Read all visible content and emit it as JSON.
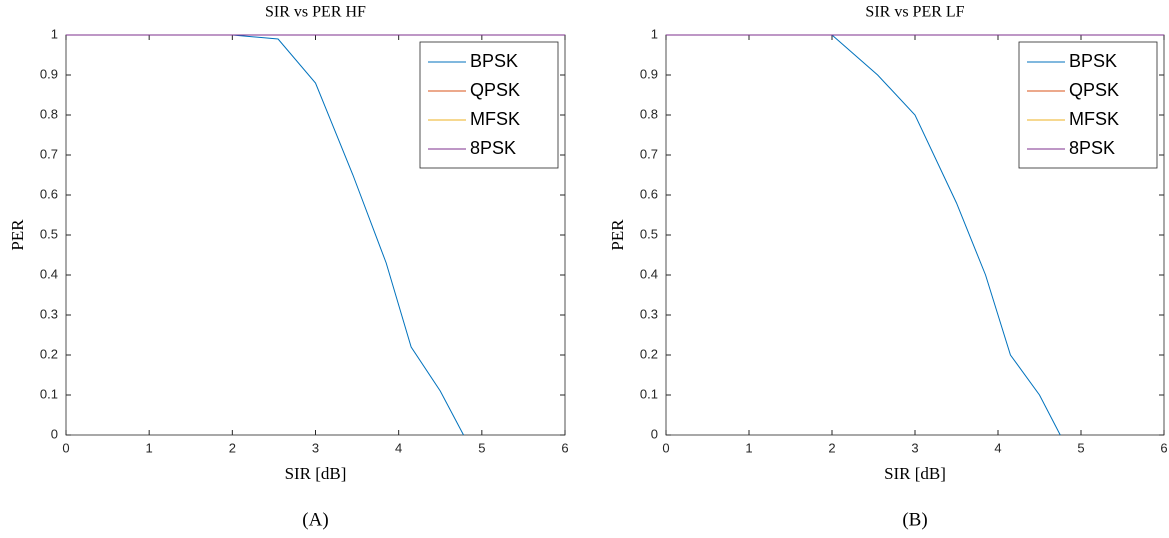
{
  "chart_data": [
    {
      "type": "line",
      "title": "SIR vs PER HF",
      "xlabel": "SIR [dB]",
      "ylabel": "PER",
      "caption": "(A)",
      "xlim": [
        0,
        6
      ],
      "ylim": [
        0,
        1
      ],
      "xticks": [
        0,
        1,
        2,
        3,
        4,
        5,
        6
      ],
      "yticks": [
        0,
        0.1,
        0.2,
        0.3,
        0.4,
        0.5,
        0.6,
        0.7,
        0.8,
        0.9,
        1
      ],
      "legend": "upper right",
      "series": [
        {
          "name": "BPSK",
          "color": "#0072bd",
          "x": [
            0,
            0.5,
            1,
            1.5,
            2,
            2.55,
            3,
            3.45,
            3.85,
            4.15,
            4.5,
            4.78
          ],
          "values": [
            1,
            1,
            1,
            1,
            1,
            0.99,
            0.88,
            0.65,
            0.43,
            0.22,
            0.11,
            0
          ]
        },
        {
          "name": "QPSK",
          "color": "#d95319",
          "x": [
            0,
            6
          ],
          "values": [
            1,
            1
          ]
        },
        {
          "name": "MFSK",
          "color": "#edb120",
          "x": [
            0,
            6
          ],
          "values": [
            1,
            1
          ]
        },
        {
          "name": "8PSK",
          "color": "#7e2f8e",
          "x": [
            0,
            6
          ],
          "values": [
            1,
            1
          ]
        }
      ]
    },
    {
      "type": "line",
      "title": "SIR vs PER LF",
      "xlabel": "SIR [dB]",
      "ylabel": "PER",
      "caption": "(B)",
      "xlim": [
        0,
        6
      ],
      "ylim": [
        0,
        1
      ],
      "xticks": [
        0,
        1,
        2,
        3,
        4,
        5,
        6
      ],
      "yticks": [
        0,
        0.1,
        0.2,
        0.3,
        0.4,
        0.5,
        0.6,
        0.7,
        0.8,
        0.9,
        1
      ],
      "legend": "upper right",
      "series": [
        {
          "name": "BPSK",
          "color": "#0072bd",
          "x": [
            0,
            0.5,
            1,
            1.5,
            2,
            2.55,
            3,
            3.5,
            3.85,
            4.15,
            4.5,
            4.75
          ],
          "values": [
            1,
            1,
            1,
            1,
            1,
            0.9,
            0.8,
            0.58,
            0.4,
            0.2,
            0.1,
            0
          ]
        },
        {
          "name": "QPSK",
          "color": "#d95319",
          "x": [
            0,
            6
          ],
          "values": [
            1,
            1
          ]
        },
        {
          "name": "MFSK",
          "color": "#edb120",
          "x": [
            0,
            6
          ],
          "values": [
            1,
            1
          ]
        },
        {
          "name": "8PSK",
          "color": "#7e2f8e",
          "x": [
            0,
            6
          ],
          "values": [
            1,
            1
          ]
        }
      ]
    }
  ]
}
